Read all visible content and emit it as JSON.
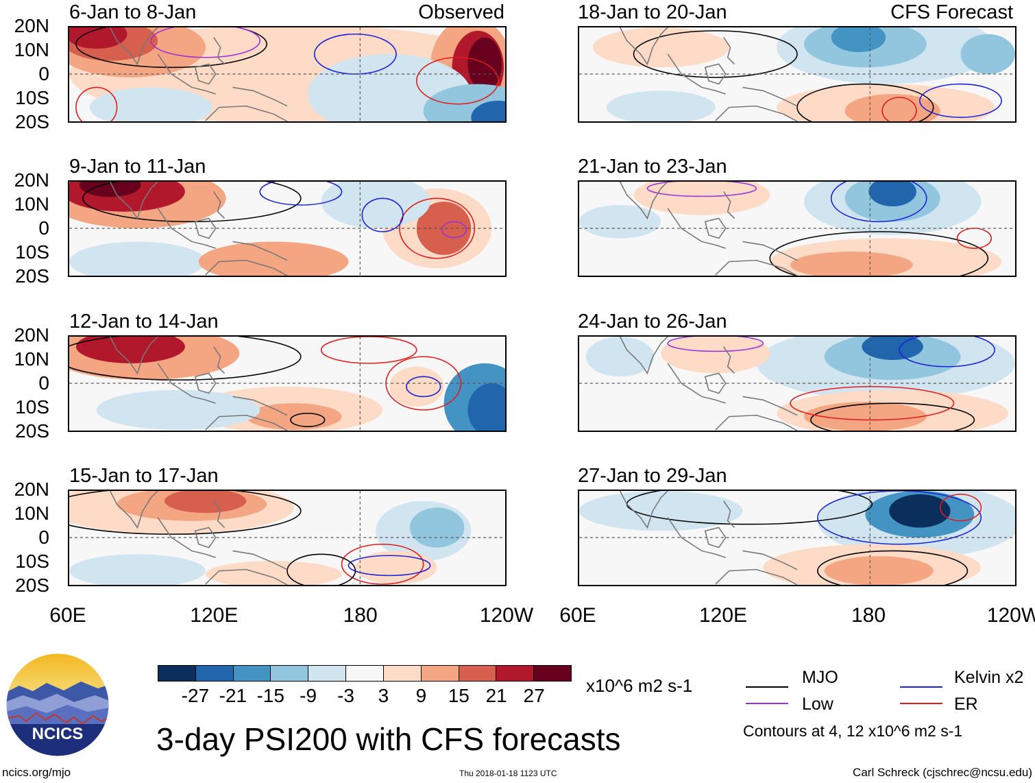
{
  "panels": [
    {
      "id": "p1",
      "title": "6-Jan to 8-Jan",
      "source": "Observed"
    },
    {
      "id": "p2",
      "title": "18-Jan to 20-Jan",
      "source": "CFS Forecast"
    },
    {
      "id": "p3",
      "title": "9-Jan to 11-Jan",
      "source": ""
    },
    {
      "id": "p4",
      "title": "21-Jan to 23-Jan",
      "source": ""
    },
    {
      "id": "p5",
      "title": "12-Jan to 14-Jan",
      "source": ""
    },
    {
      "id": "p6",
      "title": "24-Jan to 26-Jan",
      "source": ""
    },
    {
      "id": "p7",
      "title": "15-Jan to 17-Jan",
      "source": ""
    },
    {
      "id": "p8",
      "title": "27-Jan to 29-Jan",
      "source": ""
    }
  ],
  "y_axis_labels": [
    "20N",
    "10N",
    "0",
    "10S",
    "20S"
  ],
  "x_axis_labels": [
    "60E",
    "120E",
    "180",
    "120W"
  ],
  "colorbar": {
    "colors": [
      "#0b2f5c",
      "#2166ac",
      "#4393c3",
      "#92c5de",
      "#d1e5f0",
      "#f7f7f7",
      "#fddbc7",
      "#f4a582",
      "#d6604d",
      "#b2182b",
      "#67001f"
    ],
    "ticks": [
      "-27",
      "-21",
      "-15",
      "-9",
      "-3",
      "3",
      "9",
      "15",
      "21",
      "27"
    ],
    "units": "x10^6 m2 s-1"
  },
  "legend": [
    {
      "label": "MJO",
      "color": "#000000"
    },
    {
      "label": "Kelvin x2",
      "color": "#1a22d6"
    },
    {
      "label": "Low",
      "color": "#9b30d9"
    },
    {
      "label": "ER",
      "color": "#e21b1b"
    }
  ],
  "contour_note": "Contours at 4, 12 x10^6 m2 s-1",
  "main_title": "3-day PSI200 with CFS forecasts",
  "logo_text": "NCICS",
  "footer": {
    "left": "ncics.org/mjo",
    "center": "Thu 2018-01-18 1123 UTC",
    "right": "Carl Schreck (cjschrec@ncsu.edu)"
  }
}
